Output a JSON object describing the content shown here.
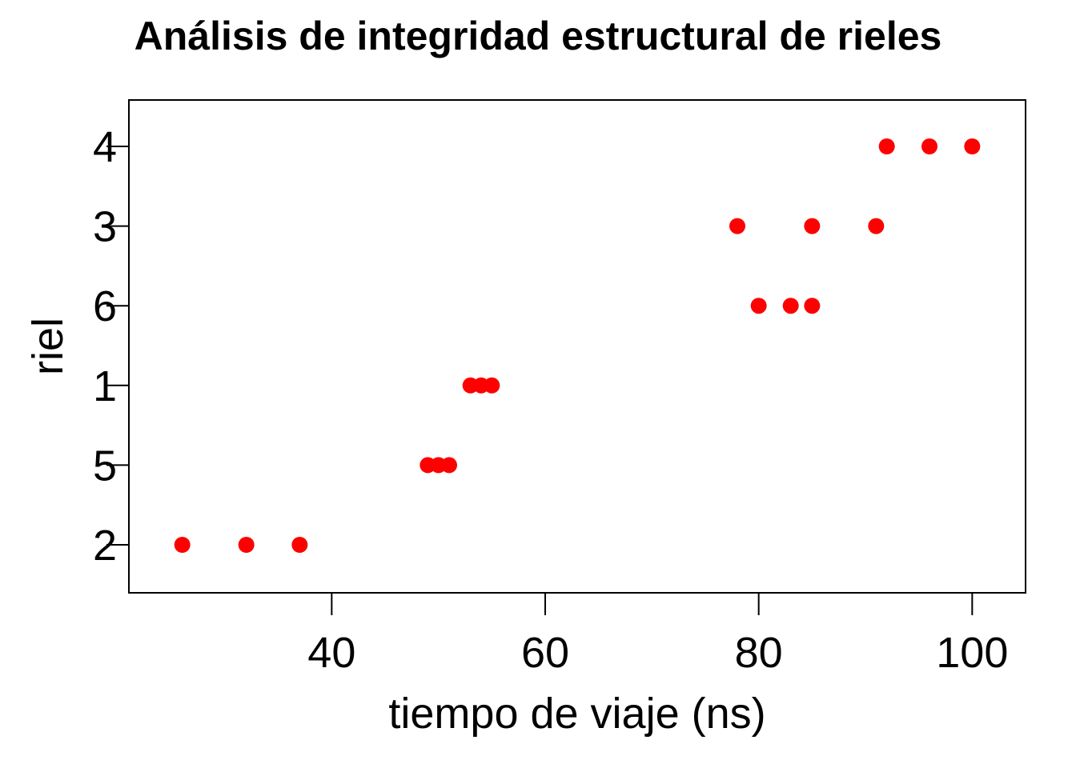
{
  "chart_data": {
    "type": "scatter",
    "title": "Análisis de integridad estructural de rieles",
    "xlabel": "tiempo de viaje (ns)",
    "ylabel": "riel",
    "xlim": [
      21,
      105
    ],
    "x_ticks": [
      40,
      60,
      80,
      100
    ],
    "y_categories": [
      "2",
      "5",
      "1",
      "6",
      "3",
      "4"
    ],
    "grid": false,
    "legend": "none",
    "point_color": "#ff0000",
    "points": [
      {
        "y": "2",
        "x": 26
      },
      {
        "y": "2",
        "x": 32
      },
      {
        "y": "2",
        "x": 37
      },
      {
        "y": "5",
        "x": 49
      },
      {
        "y": "5",
        "x": 50
      },
      {
        "y": "5",
        "x": 51
      },
      {
        "y": "1",
        "x": 53
      },
      {
        "y": "1",
        "x": 54
      },
      {
        "y": "1",
        "x": 55
      },
      {
        "y": "6",
        "x": 80
      },
      {
        "y": "6",
        "x": 83
      },
      {
        "y": "6",
        "x": 85
      },
      {
        "y": "3",
        "x": 78
      },
      {
        "y": "3",
        "x": 85
      },
      {
        "y": "3",
        "x": 91
      },
      {
        "y": "4",
        "x": 92
      },
      {
        "y": "4",
        "x": 96
      },
      {
        "y": "4",
        "x": 100
      }
    ]
  }
}
